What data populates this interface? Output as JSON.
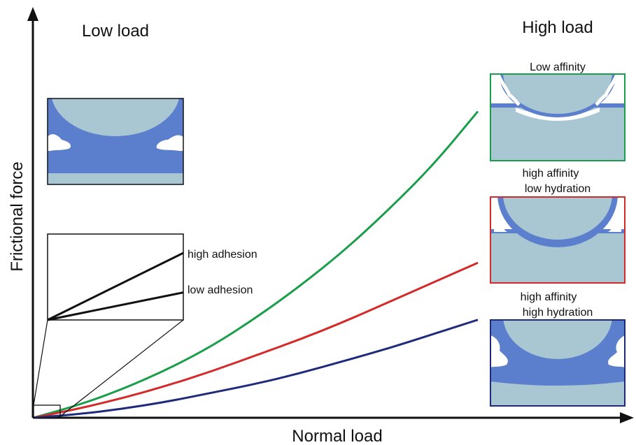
{
  "colors": {
    "particle": "#a9c6d3",
    "hydration": "#5b7fcc",
    "background": "#ffffff",
    "axis": "#111111"
  },
  "chart_data": {
    "type": "line",
    "title": "",
    "xlabel": "Normal load",
    "ylabel": "Frictional force",
    "xlim": [
      0,
      10
    ],
    "ylim": [
      0,
      10
    ],
    "grid": false,
    "legend": "none",
    "series": [
      {
        "color": "#1a9e4a",
        "x": [
          0,
          1,
          2,
          3,
          4,
          5,
          6,
          7,
          8,
          9,
          10
        ],
        "y": [
          0,
          0.35,
          0.8,
          1.35,
          2.0,
          2.8,
          3.7,
          4.7,
          5.85,
          7.1,
          8.6
        ]
      },
      {
        "color": "#d42a2a",
        "x": [
          0,
          1,
          2,
          3,
          4,
          5,
          6,
          7,
          8,
          9,
          10
        ],
        "y": [
          0,
          0.25,
          0.55,
          0.9,
          1.3,
          1.75,
          2.2,
          2.7,
          3.25,
          3.8,
          4.35
        ]
      },
      {
        "color": "#1f2a7a",
        "x": [
          0,
          1,
          2,
          3,
          4,
          5,
          6,
          7,
          8,
          9,
          10
        ],
        "y": [
          0,
          0.1,
          0.25,
          0.45,
          0.7,
          0.95,
          1.25,
          1.6,
          1.95,
          2.35,
          2.75
        ]
      }
    ],
    "inset": {
      "lines": [
        {
          "label": "high adhesion",
          "y": [
            0,
            0.78
          ]
        },
        {
          "label": "low adhesion",
          "y": [
            0,
            0.32
          ]
        }
      ]
    }
  },
  "labels": {
    "low_load": "Low load",
    "high_load": "High load",
    "low_affinity": "Low affinity",
    "high_affinity_low_hydration": [
      "high affinity",
      "low hydration"
    ],
    "high_affinity_high_hydration": [
      "high affinity",
      "high hydration"
    ]
  },
  "panels": [
    {
      "name": "low-load-panel",
      "border": "#111111"
    },
    {
      "name": "low-affinity-panel",
      "border": "#1a9e4a"
    },
    {
      "name": "low-hydration-panel",
      "border": "#d42a2a"
    },
    {
      "name": "high-hydration-panel",
      "border": "#1f2a7a"
    }
  ]
}
